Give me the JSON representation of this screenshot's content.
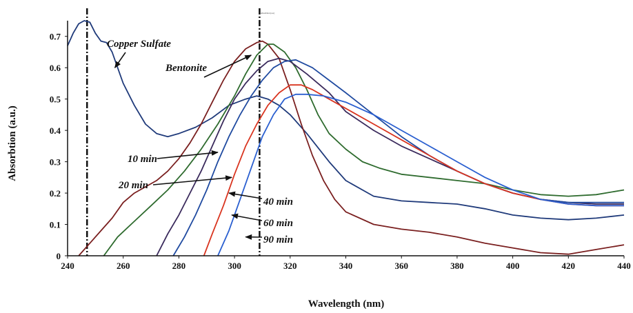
{
  "chart_data": {
    "type": "line",
    "title": "",
    "tiny_header": "Absorbtion (a.u)",
    "xlabel": "Wavelength (nm)",
    "ylabel": "Absorbtion (a.u.)",
    "xlim": [
      240,
      440
    ],
    "ylim": [
      0,
      0.75
    ],
    "x_ticks": [
      "240",
      "260",
      "280",
      "300",
      "320",
      "340",
      "360",
      "380",
      "400",
      "420",
      "440"
    ],
    "y_ticks": [
      "0",
      "0.1",
      "0.2",
      "0.3",
      "0.4",
      "0.5",
      "0.6",
      "0.7"
    ],
    "grid": false,
    "reference_lines_x": [
      247,
      309
    ],
    "series": [
      {
        "name": "Copper Sulfate",
        "color": "#1f3a7a",
        "points": [
          [
            240,
            0.67
          ],
          [
            242,
            0.71
          ],
          [
            244,
            0.74
          ],
          [
            246,
            0.75
          ],
          [
            248,
            0.745
          ],
          [
            250,
            0.71
          ],
          [
            252,
            0.685
          ],
          [
            254,
            0.68
          ],
          [
            256,
            0.65
          ],
          [
            258,
            0.6
          ],
          [
            260,
            0.55
          ],
          [
            264,
            0.48
          ],
          [
            268,
            0.42
          ],
          [
            272,
            0.39
          ],
          [
            276,
            0.38
          ],
          [
            280,
            0.39
          ],
          [
            286,
            0.41
          ],
          [
            292,
            0.44
          ],
          [
            298,
            0.48
          ],
          [
            304,
            0.5
          ],
          [
            308,
            0.51
          ],
          [
            312,
            0.5
          ],
          [
            316,
            0.48
          ],
          [
            320,
            0.45
          ],
          [
            326,
            0.39
          ],
          [
            334,
            0.3
          ],
          [
            340,
            0.24
          ],
          [
            350,
            0.19
          ],
          [
            360,
            0.175
          ],
          [
            370,
            0.17
          ],
          [
            380,
            0.165
          ],
          [
            390,
            0.15
          ],
          [
            400,
            0.13
          ],
          [
            410,
            0.12
          ],
          [
            420,
            0.115
          ],
          [
            430,
            0.12
          ],
          [
            440,
            0.13
          ]
        ]
      },
      {
        "name": "Bentonite",
        "color": "#7a1f1f",
        "points": [
          [
            244,
            0.0
          ],
          [
            248,
            0.04
          ],
          [
            252,
            0.08
          ],
          [
            256,
            0.12
          ],
          [
            260,
            0.17
          ],
          [
            264,
            0.2
          ],
          [
            268,
            0.22
          ],
          [
            272,
            0.24
          ],
          [
            276,
            0.27
          ],
          [
            280,
            0.31
          ],
          [
            284,
            0.36
          ],
          [
            288,
            0.42
          ],
          [
            292,
            0.49
          ],
          [
            296,
            0.56
          ],
          [
            300,
            0.62
          ],
          [
            304,
            0.66
          ],
          [
            308,
            0.68
          ],
          [
            310,
            0.685
          ],
          [
            312,
            0.675
          ],
          [
            316,
            0.63
          ],
          [
            320,
            0.53
          ],
          [
            324,
            0.42
          ],
          [
            328,
            0.32
          ],
          [
            332,
            0.24
          ],
          [
            336,
            0.18
          ],
          [
            340,
            0.14
          ],
          [
            350,
            0.1
          ],
          [
            360,
            0.085
          ],
          [
            370,
            0.075
          ],
          [
            380,
            0.06
          ],
          [
            390,
            0.04
          ],
          [
            400,
            0.025
          ],
          [
            410,
            0.01
          ],
          [
            420,
            0.005
          ],
          [
            430,
            0.02
          ],
          [
            440,
            0.035
          ]
        ]
      },
      {
        "name": "10 min",
        "color": "#2e6b2e",
        "points": [
          [
            253,
            0.0
          ],
          [
            258,
            0.06
          ],
          [
            264,
            0.11
          ],
          [
            270,
            0.16
          ],
          [
            276,
            0.21
          ],
          [
            282,
            0.27
          ],
          [
            288,
            0.34
          ],
          [
            294,
            0.42
          ],
          [
            300,
            0.51
          ],
          [
            304,
            0.58
          ],
          [
            308,
            0.64
          ],
          [
            312,
            0.675
          ],
          [
            314,
            0.675
          ],
          [
            318,
            0.65
          ],
          [
            322,
            0.6
          ],
          [
            326,
            0.53
          ],
          [
            330,
            0.45
          ],
          [
            334,
            0.39
          ],
          [
            340,
            0.34
          ],
          [
            346,
            0.3
          ],
          [
            352,
            0.28
          ],
          [
            360,
            0.26
          ],
          [
            370,
            0.25
          ],
          [
            380,
            0.24
          ],
          [
            390,
            0.23
          ],
          [
            400,
            0.21
          ],
          [
            410,
            0.195
          ],
          [
            420,
            0.19
          ],
          [
            430,
            0.195
          ],
          [
            440,
            0.21
          ]
        ]
      },
      {
        "name": "20 min",
        "color": "#3a2a5c",
        "points": [
          [
            272,
            0.0
          ],
          [
            276,
            0.07
          ],
          [
            280,
            0.13
          ],
          [
            284,
            0.2
          ],
          [
            288,
            0.27
          ],
          [
            292,
            0.35
          ],
          [
            296,
            0.43
          ],
          [
            300,
            0.5
          ],
          [
            304,
            0.55
          ],
          [
            308,
            0.59
          ],
          [
            312,
            0.62
          ],
          [
            316,
            0.63
          ],
          [
            320,
            0.62
          ],
          [
            326,
            0.58
          ],
          [
            334,
            0.52
          ],
          [
            340,
            0.46
          ],
          [
            350,
            0.4
          ],
          [
            360,
            0.35
          ],
          [
            370,
            0.31
          ],
          [
            380,
            0.27
          ],
          [
            390,
            0.23
          ],
          [
            400,
            0.2
          ],
          [
            410,
            0.18
          ],
          [
            420,
            0.17
          ],
          [
            430,
            0.165
          ],
          [
            440,
            0.165
          ]
        ]
      },
      {
        "name": "40 min",
        "color": "#1f4aa0",
        "points": [
          [
            278,
            0.0
          ],
          [
            282,
            0.06
          ],
          [
            286,
            0.13
          ],
          [
            290,
            0.21
          ],
          [
            294,
            0.3
          ],
          [
            298,
            0.38
          ],
          [
            302,
            0.45
          ],
          [
            306,
            0.51
          ],
          [
            310,
            0.56
          ],
          [
            314,
            0.6
          ],
          [
            318,
            0.62
          ],
          [
            322,
            0.625
          ],
          [
            328,
            0.6
          ],
          [
            334,
            0.56
          ],
          [
            340,
            0.52
          ],
          [
            350,
            0.45
          ],
          [
            360,
            0.38
          ],
          [
            370,
            0.32
          ],
          [
            380,
            0.27
          ],
          [
            390,
            0.23
          ],
          [
            400,
            0.2
          ],
          [
            410,
            0.18
          ],
          [
            420,
            0.17
          ],
          [
            430,
            0.17
          ],
          [
            440,
            0.17
          ]
        ]
      },
      {
        "name": "60 min",
        "color": "#d9341f",
        "points": [
          [
            289,
            0.0
          ],
          [
            292,
            0.07
          ],
          [
            296,
            0.16
          ],
          [
            300,
            0.26
          ],
          [
            304,
            0.35
          ],
          [
            308,
            0.42
          ],
          [
            312,
            0.48
          ],
          [
            316,
            0.52
          ],
          [
            320,
            0.545
          ],
          [
            324,
            0.545
          ],
          [
            328,
            0.53
          ],
          [
            334,
            0.5
          ],
          [
            340,
            0.47
          ],
          [
            350,
            0.42
          ],
          [
            360,
            0.37
          ],
          [
            370,
            0.32
          ],
          [
            380,
            0.27
          ],
          [
            390,
            0.23
          ],
          [
            400,
            0.2
          ],
          [
            410,
            0.18
          ],
          [
            420,
            0.165
          ],
          [
            430,
            0.16
          ],
          [
            440,
            0.16
          ]
        ]
      },
      {
        "name": "90 min",
        "color": "#2a5fd0",
        "points": [
          [
            294,
            0.0
          ],
          [
            298,
            0.08
          ],
          [
            302,
            0.18
          ],
          [
            306,
            0.28
          ],
          [
            310,
            0.38
          ],
          [
            314,
            0.45
          ],
          [
            318,
            0.5
          ],
          [
            322,
            0.515
          ],
          [
            326,
            0.515
          ],
          [
            332,
            0.51
          ],
          [
            340,
            0.49
          ],
          [
            350,
            0.45
          ],
          [
            360,
            0.4
          ],
          [
            370,
            0.35
          ],
          [
            380,
            0.3
          ],
          [
            390,
            0.25
          ],
          [
            400,
            0.21
          ],
          [
            410,
            0.18
          ],
          [
            420,
            0.165
          ],
          [
            430,
            0.16
          ],
          [
            440,
            0.16
          ]
        ]
      }
    ],
    "annotations": [
      {
        "text": "Copper Sulfate",
        "target": [
          257,
          0.6
        ]
      },
      {
        "text": "Bentonite",
        "target": [
          306,
          0.64
        ]
      },
      {
        "text": "10 min",
        "target": [
          294,
          0.33
        ]
      },
      {
        "text": "20 min",
        "target": [
          299,
          0.25
        ]
      },
      {
        "text": "40 min",
        "target": [
          298,
          0.2
        ]
      },
      {
        "text": "60 min",
        "target": [
          299,
          0.13
        ]
      },
      {
        "text": "90 min",
        "target": [
          304,
          0.06
        ]
      }
    ]
  }
}
